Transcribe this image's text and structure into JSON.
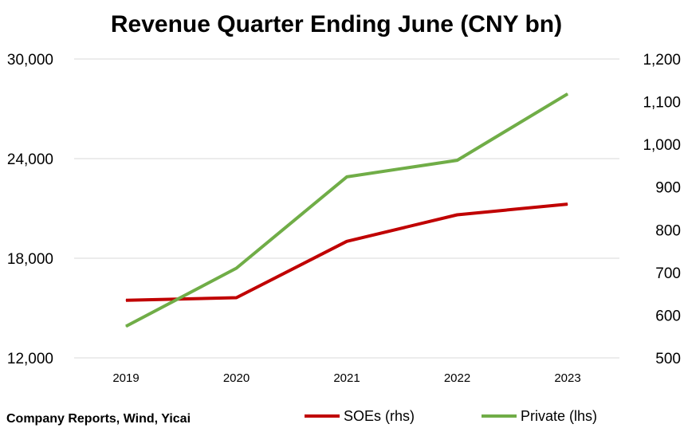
{
  "chart_data": {
    "type": "line",
    "title": "Revenue Quarter Ending June (CNY bn)",
    "categories": [
      "2019",
      "2020",
      "2021",
      "2022",
      "2023"
    ],
    "y_left": {
      "ylim": [
        12000,
        30000
      ],
      "ticks": [
        12000,
        18000,
        24000,
        30000
      ],
      "tick_labels": [
        "12,000",
        "18,000",
        "24,000",
        "30,000"
      ]
    },
    "y_right": {
      "ylim": [
        500,
        1200
      ],
      "ticks": [
        500,
        600,
        700,
        800,
        900,
        1000,
        1100,
        1200
      ],
      "tick_labels": [
        "500",
        "600",
        "700",
        "800",
        "900",
        "1,000",
        "1,100",
        "1,200"
      ]
    },
    "grid": true,
    "legend_position": "bottom-right",
    "series": [
      {
        "name": "SOEs (rhs)",
        "axis": "right",
        "color": "#c00000",
        "values": [
          635,
          641,
          773,
          835,
          860
        ]
      },
      {
        "name": "Private (lhs)",
        "axis": "left",
        "color": "#70ad47",
        "values": [
          13900,
          17400,
          22900,
          23900,
          27900
        ]
      }
    ],
    "source": "Company Reports, Wind, Yicai"
  }
}
